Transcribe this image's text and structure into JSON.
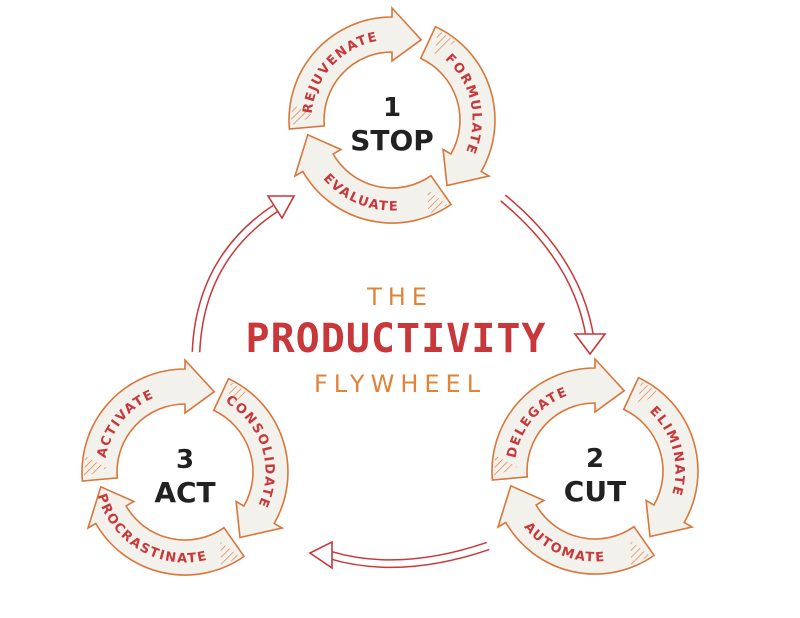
{
  "title": {
    "line1": "THE",
    "line2": "PRODUCTIVITY",
    "line3": "FLYWHEEL"
  },
  "cycles": [
    {
      "number": "1",
      "label": "STOP",
      "steps": [
        "REJUVENATE",
        "FORMULATE",
        "EVALUATE"
      ]
    },
    {
      "number": "2",
      "label": "CUT",
      "steps": [
        "DELEGATE",
        "ELIMINATE",
        "AUTOMATE"
      ]
    },
    {
      "number": "3",
      "label": "ACT",
      "steps": [
        "ACTIVATE",
        "CONSOLIDATE",
        "PROCRASTINATE"
      ]
    }
  ],
  "colors": {
    "outline": "#D9763A",
    "word": "#C8373A",
    "title_small": "#E0843A",
    "title_big": "#C8373A",
    "ring_fill": "#F3F1EC",
    "connector": "#C8373A",
    "center_text": "#222222"
  }
}
